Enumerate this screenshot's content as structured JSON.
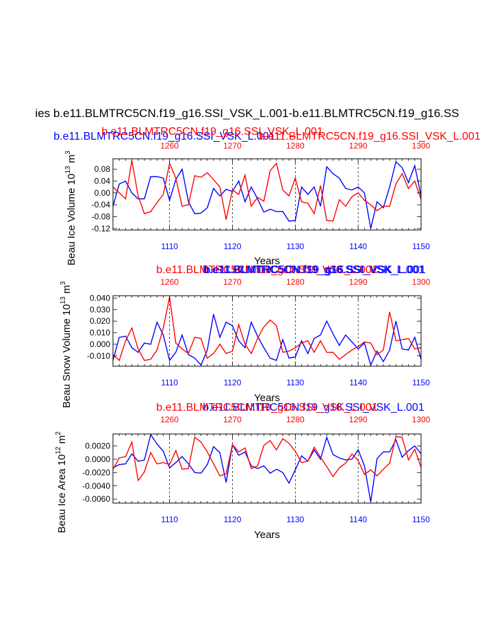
{
  "figure": {
    "main_title": "ies b.e11.BLMTRC5CN.f19_g16.SSI_VSK_L.001-b.e11.BLMTRC5CN.f19_g16.SS",
    "run_label_blue": "b.e11.BLMTRC5CN.f19_g16.SSI_VSK_L.001",
    "run_label_red": "b.e11.BLMTRC5CN.f19_g16.SSI_VSK_L.001",
    "colors": {
      "blue": "#0000ff",
      "red": "#ff0000",
      "black": "#000000"
    }
  },
  "chart_data": [
    {
      "type": "line",
      "ylabel": "Beau Ice Volume",
      "yunits_base": "10",
      "yunits_exp": "13",
      "yunits_m": "m",
      "yunits_mexp": "3",
      "xlabel": "Years",
      "xlim_bottom": [
        1101,
        1150
      ],
      "xlim_top": [
        1251,
        1300
      ],
      "ylim": [
        -0.125,
        0.115
      ],
      "yticks": [
        0.08,
        0.04,
        0.0,
        -0.04,
        -0.08,
        -0.12
      ],
      "ytick_labels": [
        "0.08",
        "0.04",
        "0.00",
        "-0.04",
        "-0.08",
        "-0.12"
      ],
      "xticks_bottom": [
        1110,
        1120,
        1130,
        1140,
        1150
      ],
      "xtick_labels_bottom": [
        "1110",
        "1120",
        "1130",
        "1140",
        "1150"
      ],
      "xticks_top": [
        1260,
        1270,
        1280,
        1290,
        1300
      ],
      "xtick_labels_top": [
        "1260",
        "1270",
        "1280",
        "1290",
        "1300"
      ],
      "x_start": 1101,
      "series": [
        {
          "name": "blue",
          "color": "#0000ff",
          "values": [
            -0.045,
            0.03,
            0.04,
            0.0,
            -0.02,
            -0.02,
            0.055,
            0.055,
            0.05,
            -0.025,
            0.045,
            0.08,
            -0.03,
            -0.07,
            -0.068,
            -0.05,
            0.015,
            -0.01,
            0.012,
            0.005,
            0.04,
            -0.03,
            0.02,
            -0.02,
            -0.065,
            -0.055,
            -0.063,
            -0.063,
            -0.095,
            -0.093,
            0.02,
            -0.005,
            0.02,
            -0.045,
            0.088,
            0.065,
            0.05,
            0.015,
            0.01,
            0.02,
            0.0,
            -0.12,
            -0.03,
            -0.05,
            0.02,
            0.105,
            0.085,
            0.035,
            0.092,
            -0.01
          ]
        },
        {
          "name": "red",
          "color": "#ff0000",
          "values": [
            0.02,
            0.0,
            -0.02,
            0.11,
            -0.01,
            -0.07,
            -0.063,
            -0.033,
            -0.005,
            0.1,
            0.05,
            -0.045,
            -0.04,
            0.058,
            0.053,
            0.068,
            0.045,
            0.02,
            -0.09,
            0.01,
            -0.005,
            0.06,
            -0.045,
            -0.015,
            -0.028,
            0.075,
            0.1,
            0.01,
            -0.01,
            0.05,
            -0.03,
            -0.035,
            -0.07,
            0.025,
            -0.093,
            -0.095,
            -0.023,
            -0.045,
            -0.013,
            0.0,
            -0.025,
            -0.04,
            -0.06,
            -0.045,
            -0.045,
            0.03,
            0.065,
            0.015,
            0.04,
            -0.022
          ]
        }
      ]
    },
    {
      "type": "line",
      "ylabel": "Beau Snow Volume",
      "yunits_base": "10",
      "yunits_exp": "13",
      "yunits_m": "m",
      "yunits_mexp": "3",
      "xlabel": "Years",
      "xlim_bottom": [
        1101,
        1150
      ],
      "xlim_top": [
        1251,
        1300
      ],
      "ylim": [
        -0.019,
        0.042
      ],
      "yticks": [
        0.04,
        0.03,
        0.02,
        0.01,
        0.0,
        -0.01
      ],
      "ytick_labels": [
        "0.040",
        "0.030",
        "0.020",
        "0.010",
        "0.000",
        "-0.010"
      ],
      "xticks_bottom": [
        1110,
        1120,
        1130,
        1140,
        1150
      ],
      "xtick_labels_bottom": [
        "1110",
        "1120",
        "1130",
        "1140",
        "1150"
      ],
      "xticks_top": [
        1260,
        1270,
        1280,
        1290,
        1300
      ],
      "xtick_labels_top": [
        "1260",
        "1270",
        "1280",
        "1290",
        "1300"
      ],
      "x_start": 1101,
      "series": [
        {
          "name": "blue",
          "color": "#0000ff",
          "values": [
            -0.014,
            0.006,
            0.007,
            -0.003,
            -0.007,
            0.001,
            0.0,
            0.019,
            0.008,
            -0.014,
            -0.007,
            0.008,
            -0.009,
            -0.012,
            -0.018,
            -0.005,
            0.026,
            0.006,
            0.019,
            0.016,
            0.003,
            -0.003,
            0.019,
            0.007,
            -0.003,
            -0.012,
            -0.014,
            0.004,
            -0.012,
            -0.011,
            0.003,
            -0.008,
            0.005,
            0.008,
            0.02,
            0.009,
            -0.001,
            0.008,
            0.002,
            -0.004,
            0.001,
            -0.018,
            -0.006,
            -0.015,
            -0.005,
            0.02,
            -0.004,
            -0.005,
            0.006,
            -0.013
          ]
        },
        {
          "name": "red",
          "color": "#ff0000",
          "values": [
            -0.009,
            -0.014,
            0.003,
            0.014,
            -0.004,
            -0.014,
            -0.013,
            -0.005,
            0.014,
            0.041,
            0.001,
            -0.004,
            -0.008,
            0.006,
            0.005,
            -0.012,
            -0.008,
            0.0,
            -0.008,
            -0.006,
            0.017,
            0.0,
            -0.008,
            0.005,
            0.015,
            0.021,
            0.016,
            -0.007,
            -0.006,
            -0.003,
            0.001,
            0.003,
            -0.007,
            0.003,
            -0.007,
            -0.007,
            -0.013,
            -0.009,
            -0.005,
            -0.002,
            0.002,
            0.001,
            -0.009,
            -0.005,
            0.028,
            0.003,
            0.004,
            0.005,
            -0.004,
            -0.003
          ]
        }
      ]
    },
    {
      "type": "line",
      "ylabel": "Beau Ice Area",
      "yunits_base": "10",
      "yunits_exp": "12",
      "yunits_m": "m",
      "yunits_mexp": "2",
      "xlabel": "Years",
      "xlim_bottom": [
        1101,
        1150
      ],
      "xlim_top": [
        1251,
        1300
      ],
      "ylim": [
        -0.0066,
        0.0038
      ],
      "yticks": [
        0.002,
        0.0,
        -0.002,
        -0.004,
        -0.006
      ],
      "ytick_labels": [
        "0.0020",
        "0.0000",
        "-0.0020",
        "-0.0040",
        "-0.0060"
      ],
      "xticks_bottom": [
        1110,
        1120,
        1130,
        1140,
        1150
      ],
      "xtick_labels_bottom": [
        "1110",
        "1120",
        "1130",
        "1140",
        "1150"
      ],
      "xticks_top": [
        1260,
        1270,
        1280,
        1290,
        1300
      ],
      "xtick_labels_top": [
        "1260",
        "1270",
        "1280",
        "1290",
        "1300"
      ],
      "x_start": 1101,
      "series": [
        {
          "name": "blue",
          "color": "#0000ff",
          "values": [
            -0.0013,
            -0.0008,
            -0.0007,
            0.0008,
            -0.0003,
            -0.0001,
            0.0037,
            0.0023,
            0.0012,
            -0.0013,
            -0.0005,
            0.0004,
            -0.0007,
            -0.002,
            -0.0021,
            -0.0008,
            0.0019,
            0.001,
            -0.0035,
            0.0022,
            0.0006,
            0.0011,
            -0.001,
            -0.0014,
            -0.001,
            -0.0021,
            -0.0015,
            -0.002,
            -0.0036,
            -0.0016,
            0.0005,
            -0.0003,
            0.0014,
            0.0,
            0.0033,
            0.0007,
            0.0002,
            -0.0001,
            0.0,
            0.0014,
            -0.001,
            -0.0064,
            0.0001,
            0.0011,
            0.0011,
            0.0029,
            0.0003,
            0.0013,
            0.002,
            0.0008
          ]
        },
        {
          "name": "red",
          "color": "#ff0000",
          "values": [
            -0.0015,
            0.0002,
            0.0004,
            0.0026,
            -0.0032,
            -0.0019,
            0.001,
            -0.0007,
            -0.0005,
            -0.0008,
            0.0013,
            -0.0015,
            -0.0014,
            0.0033,
            0.0026,
            0.0011,
            -0.0007,
            -0.0025,
            -0.0022,
            0.0022,
            0.0011,
            0.0017,
            -0.0014,
            -0.001,
            0.0021,
            0.0028,
            0.0014,
            0.0031,
            0.0024,
            0.0012,
            -0.0005,
            -0.0003,
            0.0018,
            0.0003,
            -0.0011,
            -0.0026,
            -0.0013,
            -0.0006,
            0.0008,
            -0.0002,
            -0.0023,
            -0.0016,
            -0.0025,
            -0.0015,
            -0.0006,
            0.0034,
            0.0033,
            -0.0001,
            0.0015,
            -0.0012
          ]
        }
      ]
    }
  ]
}
